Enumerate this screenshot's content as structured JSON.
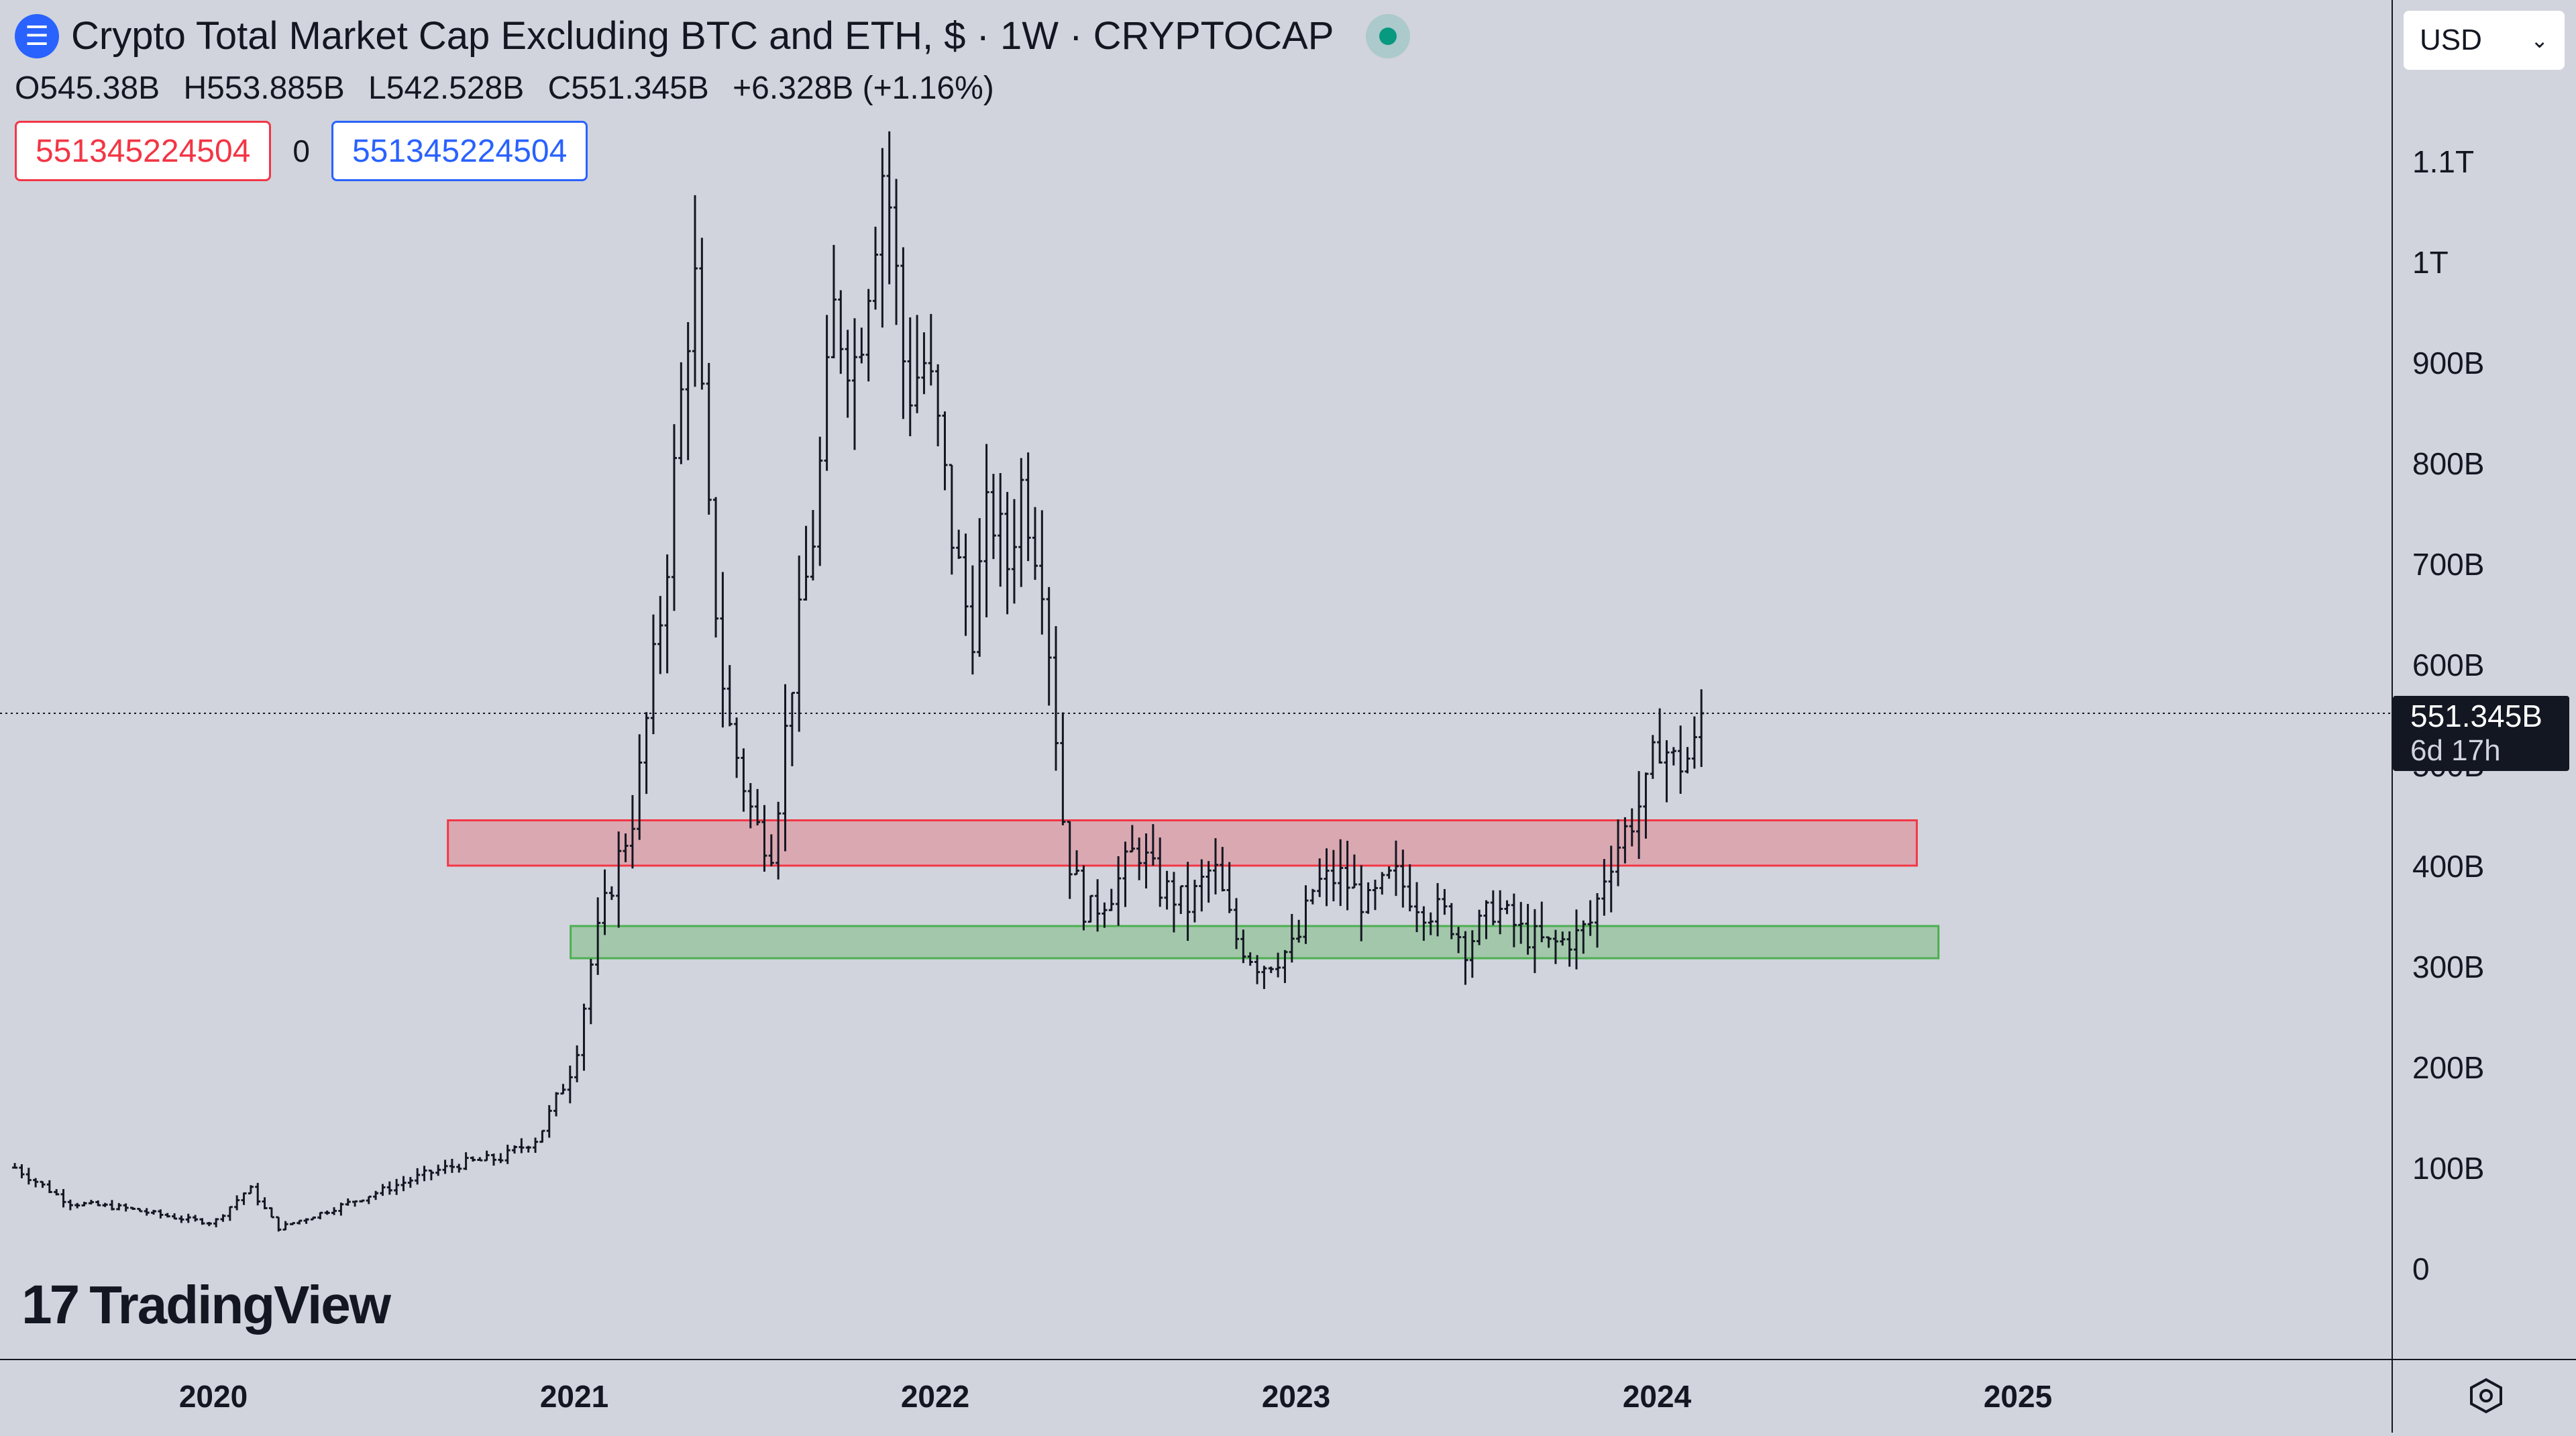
{
  "header": {
    "logo_icon": "cryptocap-logo-icon",
    "title": "Crypto Total Market Cap Excluding BTC and ETH, $ · 1W · CRYPTOCAP",
    "status_dot_color": "#089981"
  },
  "ohlc": {
    "open": "O545.38B",
    "high": "H553.885B",
    "low": "L542.528B",
    "close": "C551.345B",
    "change": "+6.328B (+1.16%)"
  },
  "inputs": {
    "left_value": "551345224504",
    "middle_value": "0",
    "right_value": "551345224504"
  },
  "currency": {
    "selected": "USD"
  },
  "price_axis": {
    "ticks": [
      "1.1T",
      "1T",
      "900B",
      "800B",
      "700B",
      "600B",
      "500B",
      "400B",
      "300B",
      "200B",
      "100B",
      "0"
    ],
    "last_price_label": "551.345B",
    "countdown": "6d 17h"
  },
  "time_axis": {
    "labels": [
      "2020",
      "2021",
      "2022",
      "2023",
      "2024",
      "2025"
    ]
  },
  "branding": {
    "name": "TradingView"
  },
  "chart_data": {
    "type": "ohlc",
    "symbol": "CRYPTOCAP",
    "interval": "1W",
    "x_unit": "fractional year",
    "ylim": [
      0,
      1150
    ],
    "y_unit": "billion USD",
    "bar_color": "#131722",
    "last_close": 551.345,
    "waypoints": [
      [
        2019.45,
        100
      ],
      [
        2019.6,
        65
      ],
      [
        2019.75,
        60
      ],
      [
        2019.9,
        50
      ],
      [
        2020.0,
        45
      ],
      [
        2020.1,
        80
      ],
      [
        2020.18,
        40
      ],
      [
        2020.3,
        55
      ],
      [
        2020.45,
        75
      ],
      [
        2020.6,
        95
      ],
      [
        2020.7,
        105
      ],
      [
        2020.8,
        110
      ],
      [
        2020.9,
        130
      ],
      [
        2021.0,
        205
      ],
      [
        2021.05,
        310
      ],
      [
        2021.1,
        380
      ],
      [
        2021.17,
        460
      ],
      [
        2021.25,
        680
      ],
      [
        2021.33,
        1000
      ],
      [
        2021.37,
        750
      ],
      [
        2021.42,
        550
      ],
      [
        2021.5,
        440
      ],
      [
        2021.55,
        420
      ],
      [
        2021.6,
        580
      ],
      [
        2021.67,
        750
      ],
      [
        2021.72,
        950
      ],
      [
        2021.78,
        900
      ],
      [
        2021.86,
        1110
      ],
      [
        2021.92,
        870
      ],
      [
        2021.97,
        900
      ],
      [
        2022.0,
        850
      ],
      [
        2022.05,
        720
      ],
      [
        2022.1,
        630
      ],
      [
        2022.15,
        760
      ],
      [
        2022.2,
        700
      ],
      [
        2022.24,
        780
      ],
      [
        2022.3,
        690
      ],
      [
        2022.36,
        420
      ],
      [
        2022.42,
        350
      ],
      [
        2022.5,
        380
      ],
      [
        2022.56,
        420
      ],
      [
        2022.62,
        380
      ],
      [
        2022.7,
        360
      ],
      [
        2022.77,
        400
      ],
      [
        2022.83,
        330
      ],
      [
        2022.9,
        300
      ],
      [
        2023.0,
        320
      ],
      [
        2023.05,
        380
      ],
      [
        2023.12,
        390
      ],
      [
        2023.2,
        360
      ],
      [
        2023.27,
        390
      ],
      [
        2023.35,
        360
      ],
      [
        2023.42,
        350
      ],
      [
        2023.47,
        320
      ],
      [
        2023.55,
        360
      ],
      [
        2023.62,
        335
      ],
      [
        2023.7,
        320
      ],
      [
        2023.78,
        330
      ],
      [
        2023.82,
        345
      ],
      [
        2023.86,
        400
      ],
      [
        2023.92,
        440
      ],
      [
        2023.98,
        480
      ],
      [
        2024.0,
        530
      ],
      [
        2024.05,
        500
      ],
      [
        2024.1,
        510
      ],
      [
        2024.13,
        551
      ]
    ],
    "zones": [
      {
        "name": "resistance",
        "color": "red",
        "x_start": 2020.65,
        "x_end": 2024.72,
        "y_low": 400,
        "y_high": 445
      },
      {
        "name": "support",
        "color": "green",
        "x_start": 2020.99,
        "x_end": 2024.78,
        "y_low": 308,
        "y_high": 340
      }
    ]
  }
}
